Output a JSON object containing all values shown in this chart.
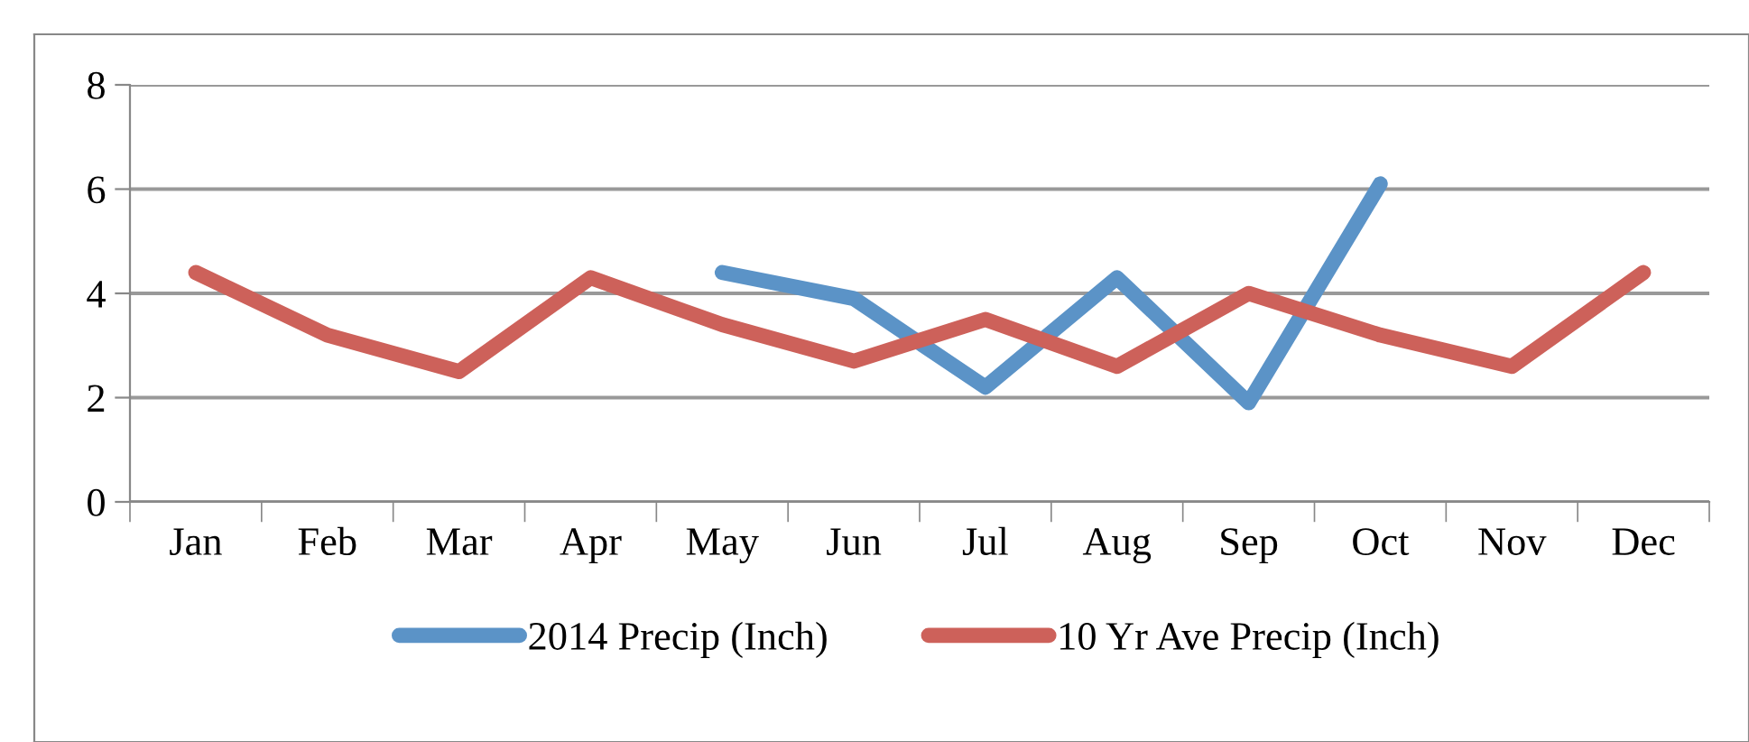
{
  "chart_data": {
    "type": "line",
    "categories": [
      "Jan",
      "Feb",
      "Mar",
      "Apr",
      "May",
      "Jun",
      "Jul",
      "Aug",
      "Sep",
      "Oct",
      "Nov",
      "Dec"
    ],
    "series": [
      {
        "name": "2014 Precip (Inch)",
        "color": "#5b93c7",
        "values": [
          null,
          null,
          null,
          null,
          4.4,
          3.9,
          2.2,
          4.3,
          1.9,
          6.1,
          null,
          null
        ]
      },
      {
        "name": "10 Yr Ave Precip (Inch)",
        "color": "#cd615a",
        "values": [
          4.4,
          3.2,
          2.5,
          4.3,
          3.4,
          2.7,
          3.5,
          2.6,
          4.0,
          3.2,
          2.6,
          4.4
        ]
      }
    ],
    "ylim": [
      0,
      8
    ],
    "yticks": [
      0,
      2,
      4,
      6,
      8
    ],
    "grid": "y",
    "legend": "bottom",
    "marker": "none",
    "line_style": "solid"
  }
}
